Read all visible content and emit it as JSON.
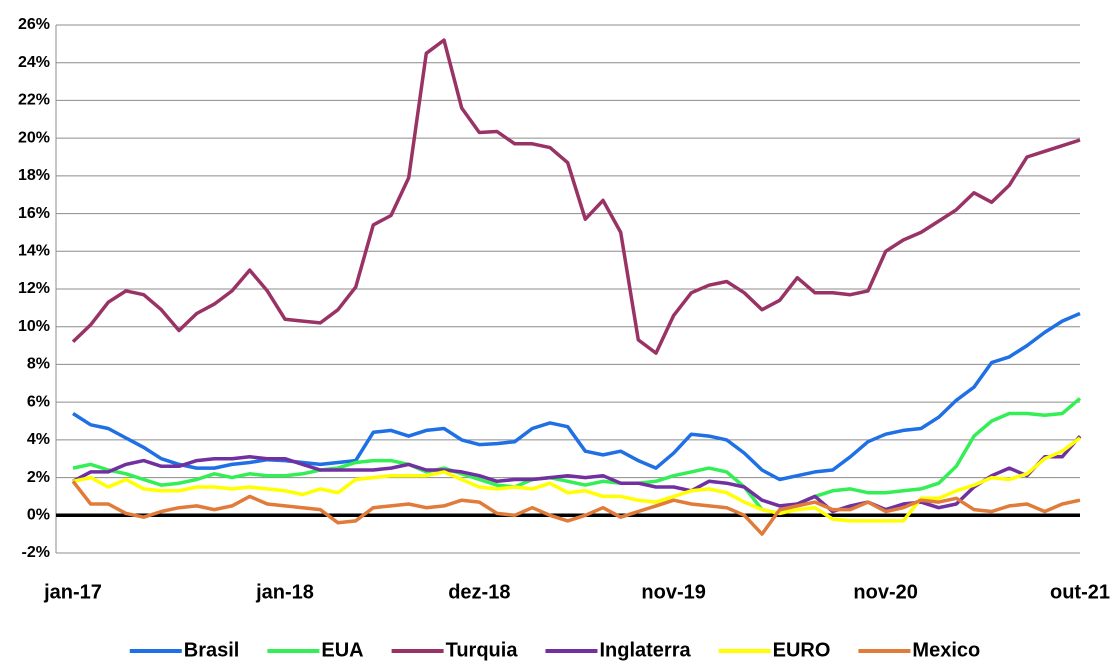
{
  "chart_data": {
    "type": "line",
    "categories": [
      "jan-17",
      null,
      null,
      null,
      null,
      null,
      null,
      null,
      null,
      null,
      null,
      null,
      "jan-18",
      null,
      null,
      null,
      null,
      null,
      null,
      null,
      null,
      null,
      null,
      "dez-18",
      null,
      null,
      null,
      null,
      null,
      null,
      null,
      null,
      null,
      null,
      "nov-19",
      null,
      null,
      null,
      null,
      null,
      null,
      null,
      null,
      null,
      null,
      null,
      "nov-20",
      null,
      null,
      null,
      null,
      null,
      null,
      null,
      null,
      null,
      null,
      "out-21"
    ],
    "series": [
      {
        "name": "Brasil",
        "color": "#1f6fe5",
        "values": [
          5.4,
          4.8,
          4.6,
          4.1,
          3.6,
          3.0,
          2.7,
          2.5,
          2.5,
          2.7,
          2.8,
          2.95,
          2.9,
          2.8,
          2.7,
          2.8,
          2.9,
          4.4,
          4.5,
          4.2,
          4.5,
          4.6,
          4.0,
          3.75,
          3.8,
          3.9,
          4.6,
          4.9,
          4.7,
          3.4,
          3.2,
          3.4,
          2.9,
          2.5,
          3.3,
          4.3,
          4.2,
          4.0,
          3.3,
          2.4,
          1.9,
          2.1,
          2.3,
          2.4,
          3.1,
          3.9,
          4.3,
          4.5,
          4.6,
          5.2,
          6.1,
          6.8,
          8.1,
          8.4,
          9.0,
          9.7,
          10.3,
          10.7
        ]
      },
      {
        "name": "EUA",
        "color": "#33ee55",
        "values": [
          2.5,
          2.7,
          2.4,
          2.2,
          1.9,
          1.6,
          1.7,
          1.9,
          2.2,
          2.0,
          2.2,
          2.1,
          2.1,
          2.2,
          2.4,
          2.5,
          2.8,
          2.9,
          2.9,
          2.7,
          2.3,
          2.5,
          2.2,
          1.9,
          1.6,
          1.5,
          1.9,
          2.0,
          1.8,
          1.6,
          1.8,
          1.7,
          1.7,
          1.8,
          2.1,
          2.3,
          2.5,
          2.3,
          1.5,
          0.3,
          0.1,
          0.6,
          1.0,
          1.3,
          1.4,
          1.2,
          1.2,
          1.3,
          1.4,
          1.7,
          2.6,
          4.2,
          5.0,
          5.4,
          5.4,
          5.3,
          5.4,
          6.2
        ]
      },
      {
        "name": "Turquia",
        "color": "#993366",
        "values": [
          9.2,
          10.1,
          11.3,
          11.9,
          11.7,
          10.9,
          9.8,
          10.7,
          11.2,
          11.9,
          13.0,
          11.9,
          10.4,
          10.3,
          10.2,
          10.9,
          12.1,
          15.4,
          15.9,
          17.9,
          24.5,
          25.2,
          21.6,
          20.3,
          20.35,
          19.7,
          19.7,
          19.5,
          18.7,
          15.7,
          16.7,
          15.0,
          9.3,
          8.6,
          10.6,
          11.8,
          12.2,
          12.4,
          11.8,
          10.9,
          11.4,
          12.6,
          11.8,
          11.8,
          11.7,
          11.9,
          14.0,
          14.6,
          15.0,
          15.6,
          16.2,
          17.1,
          16.6,
          17.5,
          19.0,
          19.3,
          19.6,
          19.9
        ]
      },
      {
        "name": "Inglaterra",
        "color": "#7030a0",
        "values": [
          1.8,
          2.3,
          2.3,
          2.7,
          2.9,
          2.6,
          2.6,
          2.9,
          3.0,
          3.0,
          3.1,
          3.0,
          3.0,
          2.7,
          2.4,
          2.4,
          2.4,
          2.4,
          2.5,
          2.7,
          2.4,
          2.4,
          2.3,
          2.1,
          1.8,
          1.9,
          1.9,
          2.0,
          2.1,
          2.0,
          2.1,
          1.7,
          1.7,
          1.5,
          1.5,
          1.3,
          1.8,
          1.7,
          1.5,
          0.8,
          0.5,
          0.6,
          1.0,
          0.2,
          0.5,
          0.7,
          0.3,
          0.6,
          0.7,
          0.4,
          0.6,
          1.5,
          2.1,
          2.5,
          2.1,
          3.1,
          3.1,
          4.2
        ]
      },
      {
        "name": "EURO",
        "color": "#ffff00",
        "values": [
          1.8,
          2.0,
          1.5,
          1.9,
          1.4,
          1.3,
          1.3,
          1.5,
          1.5,
          1.4,
          1.5,
          1.4,
          1.3,
          1.1,
          1.4,
          1.2,
          1.9,
          2.0,
          2.1,
          2.1,
          2.1,
          2.3,
          1.9,
          1.5,
          1.4,
          1.5,
          1.4,
          1.7,
          1.2,
          1.3,
          1.0,
          1.0,
          0.8,
          0.7,
          1.0,
          1.3,
          1.4,
          1.2,
          0.7,
          0.3,
          0.1,
          0.3,
          0.4,
          -0.2,
          -0.3,
          -0.3,
          -0.3,
          -0.3,
          0.9,
          0.9,
          1.3,
          1.6,
          2.0,
          1.9,
          2.2,
          3.0,
          3.4,
          4.1
        ]
      },
      {
        "name": "Mexico",
        "color": "#e07b39",
        "values": [
          1.8,
          0.6,
          0.6,
          0.1,
          -0.1,
          0.2,
          0.4,
          0.5,
          0.3,
          0.5,
          1.0,
          0.6,
          0.5,
          0.4,
          0.3,
          -0.4,
          -0.3,
          0.4,
          0.5,
          0.6,
          0.4,
          0.5,
          0.8,
          0.7,
          0.1,
          0.0,
          0.4,
          0.0,
          -0.3,
          0.0,
          0.4,
          -0.1,
          0.2,
          0.5,
          0.8,
          0.6,
          0.5,
          0.4,
          0.0,
          -1.0,
          0.3,
          0.5,
          0.7,
          0.3,
          0.3,
          0.7,
          0.2,
          0.4,
          0.8,
          0.7,
          0.9,
          0.3,
          0.2,
          0.5,
          0.6,
          0.2,
          0.6,
          0.8
        ]
      }
    ],
    "ylim": [
      -2,
      26
    ],
    "yticks": [
      {
        "value": -2,
        "label": "-2%"
      },
      {
        "value": 0,
        "label": "0%"
      },
      {
        "value": 2,
        "label": "2%"
      },
      {
        "value": 4,
        "label": "4%"
      },
      {
        "value": 6,
        "label": "6%"
      },
      {
        "value": 8,
        "label": "8%"
      },
      {
        "value": 10,
        "label": "10%"
      },
      {
        "value": 12,
        "label": "12%"
      },
      {
        "value": 14,
        "label": "14%"
      },
      {
        "value": 16,
        "label": "16%"
      },
      {
        "value": 18,
        "label": "18%"
      },
      {
        "value": 20,
        "label": "20%"
      },
      {
        "value": 22,
        "label": "22%"
      },
      {
        "value": 24,
        "label": "24%"
      },
      {
        "value": 26,
        "label": "26%"
      }
    ],
    "grid": true,
    "legend": "bottom"
  }
}
